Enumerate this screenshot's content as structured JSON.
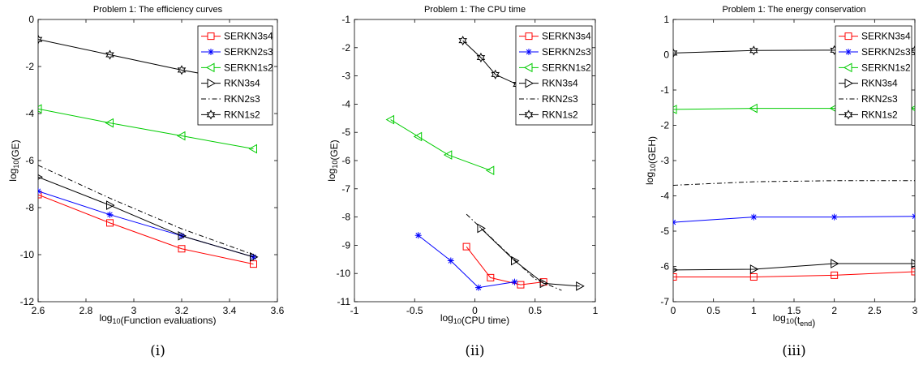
{
  "chart_data": [
    {
      "type": "line",
      "title": "Problem 1: The efficiency curves",
      "xlabel": "log_{10}(Function evaluations)",
      "ylabel": "log_{10}(GE)",
      "caption": "(i)",
      "xlim": [
        2.6,
        3.6
      ],
      "ylim": [
        -12,
        0
      ],
      "xticks": [
        2.6,
        2.8,
        3,
        3.2,
        3.4,
        3.6
      ],
      "yticks": [
        -12,
        -10,
        -8,
        -6,
        -4,
        -2,
        0
      ],
      "xtick_labels": [
        "2.6",
        "2.8",
        "3",
        "3.2",
        "3.4",
        "3.6"
      ],
      "ytick_labels": [
        "-12",
        "-10",
        "-8",
        "-6",
        "-4",
        "-2",
        "0"
      ],
      "legend_position": "top-right",
      "series": [
        {
          "name": "SERKN3s4",
          "color": "#ff0000",
          "marker": "square",
          "dash": "solid",
          "x": [
            2.6,
            2.9,
            3.2,
            3.5
          ],
          "y": [
            -7.45,
            -8.65,
            -9.75,
            -10.4
          ]
        },
        {
          "name": "SERKN2s3",
          "color": "#0000ff",
          "marker": "asterisk",
          "dash": "solid",
          "x": [
            2.6,
            2.9,
            3.2,
            3.5
          ],
          "y": [
            -7.3,
            -8.3,
            -9.2,
            -10.1
          ]
        },
        {
          "name": "SERKN1s2",
          "color": "#00cc00",
          "marker": "triangle-left",
          "dash": "solid",
          "x": [
            2.6,
            2.9,
            3.2,
            3.5
          ],
          "y": [
            -3.8,
            -4.4,
            -4.95,
            -5.5
          ]
        },
        {
          "name": "RKN3s4",
          "color": "#000000",
          "marker": "triangle-right",
          "dash": "solid",
          "x": [
            2.6,
            2.9,
            3.2,
            3.5
          ],
          "y": [
            -6.7,
            -7.9,
            -9.2,
            -10.1
          ]
        },
        {
          "name": "RKN2s3",
          "color": "#000000",
          "marker": "none",
          "dash": "dashdot",
          "x": [
            2.6,
            2.9,
            3.2,
            3.5
          ],
          "y": [
            -6.2,
            -7.6,
            -8.9,
            -10.0
          ]
        },
        {
          "name": "RKN1s2",
          "color": "#000000",
          "marker": "hexagram",
          "dash": "solid",
          "x": [
            2.6,
            2.9,
            3.2,
            3.5
          ],
          "y": [
            -0.85,
            -1.5,
            -2.15,
            -2.7
          ]
        }
      ]
    },
    {
      "type": "line",
      "title": "Problem 1: The CPU time",
      "xlabel": "log_{10}(CPU time)",
      "ylabel": "log_{10}(GE)",
      "caption": "(ii)",
      "xlim": [
        -1,
        1
      ],
      "ylim": [
        -11,
        -1
      ],
      "xticks": [
        -1,
        -0.5,
        0,
        0.5,
        1
      ],
      "yticks": [
        -11,
        -10,
        -9,
        -8,
        -7,
        -6,
        -5,
        -4,
        -3,
        -2,
        -1
      ],
      "xtick_labels": [
        "-1",
        "-0.5",
        "0",
        "0.5",
        "1"
      ],
      "ytick_labels": [
        "-11",
        "-10",
        "-9",
        "-8",
        "-7",
        "-6",
        "-5",
        "-4",
        "-3",
        "-2",
        "-1"
      ],
      "legend_position": "top-right",
      "series": [
        {
          "name": "SERKN3s4",
          "color": "#ff0000",
          "marker": "square",
          "dash": "solid",
          "x": [
            -0.07,
            0.13,
            0.38,
            0.57
          ],
          "y": [
            -9.05,
            -10.15,
            -10.4,
            -10.3
          ]
        },
        {
          "name": "SERKN2s3",
          "color": "#0000ff",
          "marker": "asterisk",
          "dash": "solid",
          "x": [
            -0.47,
            -0.2,
            0.03,
            0.33
          ],
          "y": [
            -8.65,
            -9.55,
            -10.5,
            -10.3
          ]
        },
        {
          "name": "SERKN1s2",
          "color": "#00cc00",
          "marker": "triangle-left",
          "dash": "solid",
          "x": [
            -0.7,
            -0.47,
            -0.22,
            0.13
          ],
          "y": [
            -4.55,
            -5.15,
            -5.8,
            -6.35
          ]
        },
        {
          "name": "RKN3s4",
          "color": "#000000",
          "marker": "triangle-right",
          "dash": "solid",
          "x": [
            0.05,
            0.33,
            0.57,
            0.87
          ],
          "y": [
            -8.4,
            -9.55,
            -10.35,
            -10.45
          ]
        },
        {
          "name": "RKN2s3",
          "color": "#000000",
          "marker": "none",
          "dash": "dashdot",
          "x": [
            -0.07,
            0.25,
            0.5,
            0.72
          ],
          "y": [
            -7.9,
            -9.2,
            -10.2,
            -10.6
          ]
        },
        {
          "name": "RKN1s2",
          "color": "#000000",
          "marker": "hexagram",
          "dash": "solid",
          "x": [
            -0.1,
            0.05,
            0.17,
            0.35
          ],
          "y": [
            -1.75,
            -2.35,
            -2.95,
            -3.3
          ]
        }
      ]
    },
    {
      "type": "line",
      "title": "Problem 1: The energy conservation",
      "xlabel": "log_{10}(t_{end})",
      "ylabel": "log_{10}(GEH)",
      "caption": "(iii)",
      "xlim": [
        0,
        3
      ],
      "ylim": [
        -7,
        1
      ],
      "xticks": [
        0,
        0.5,
        1,
        1.5,
        2,
        2.5,
        3
      ],
      "yticks": [
        -7,
        -6,
        -5,
        -4,
        -3,
        -2,
        -1,
        0,
        1
      ],
      "xtick_labels": [
        "0",
        "0.5",
        "1",
        "1.5",
        "2",
        "2.5",
        "3"
      ],
      "ytick_labels": [
        "-7",
        "-6",
        "-5",
        "-4",
        "-3",
        "-2",
        "-1",
        "0",
        "1"
      ],
      "legend_position": "top-right",
      "series": [
        {
          "name": "SERKN3s4",
          "color": "#ff0000",
          "marker": "square",
          "dash": "solid",
          "x": [
            0,
            1,
            2,
            3
          ],
          "y": [
            -6.3,
            -6.3,
            -6.25,
            -6.15
          ]
        },
        {
          "name": "SERKN2s3",
          "color": "#0000ff",
          "marker": "asterisk",
          "dash": "solid",
          "x": [
            0,
            1,
            2,
            3
          ],
          "y": [
            -4.75,
            -4.6,
            -4.6,
            -4.58
          ]
        },
        {
          "name": "SERKN1s2",
          "color": "#00cc00",
          "marker": "triangle-left",
          "dash": "solid",
          "x": [
            0,
            1,
            2,
            3
          ],
          "y": [
            -1.55,
            -1.52,
            -1.52,
            -1.52
          ]
        },
        {
          "name": "RKN3s4",
          "color": "#000000",
          "marker": "triangle-right",
          "dash": "solid",
          "x": [
            0,
            1,
            2,
            3
          ],
          "y": [
            -6.1,
            -6.08,
            -5.92,
            -5.92
          ]
        },
        {
          "name": "RKN2s3",
          "color": "#000000",
          "marker": "none",
          "dash": "dashdot",
          "x": [
            0,
            1,
            2,
            3
          ],
          "y": [
            -3.7,
            -3.6,
            -3.57,
            -3.57
          ]
        },
        {
          "name": "RKN1s2",
          "color": "#000000",
          "marker": "hexagram",
          "dash": "solid",
          "x": [
            0,
            1,
            2,
            3
          ],
          "y": [
            0.05,
            0.12,
            0.13,
            0.13
          ]
        }
      ]
    }
  ]
}
